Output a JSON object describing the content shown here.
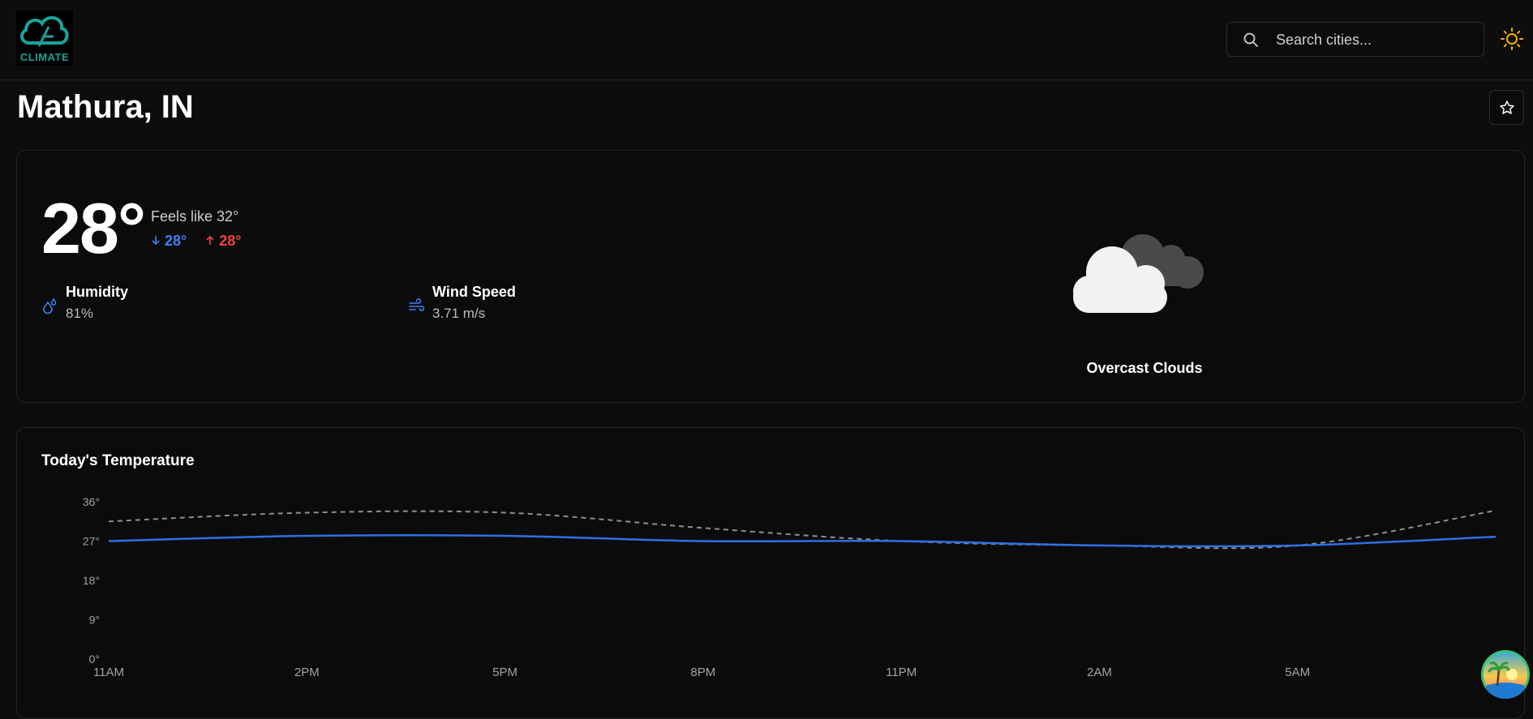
{
  "header": {
    "logo_text": "CLIMATE",
    "search_placeholder": "Search cities...",
    "accent": "#f5b301"
  },
  "location": {
    "title": "Mathura, IN"
  },
  "current": {
    "temperature": "28°",
    "feels_like": "Feels like 32°",
    "temp_min": "28°",
    "temp_max": "28°",
    "humidity_label": "Humidity",
    "humidity_value": "81%",
    "wind_label": "Wind Speed",
    "wind_value": "3.71 m/s",
    "condition": "Overcast Clouds",
    "condition_icon": "overcast-clouds-icon"
  },
  "chart_data": {
    "type": "line",
    "title": "Today's Temperature",
    "categories": [
      "11AM",
      "2PM",
      "5PM",
      "8PM",
      "11PM",
      "2AM",
      "5AM",
      "8AM"
    ],
    "y_ticks": [
      "0°",
      "9°",
      "18°",
      "27°",
      "36°"
    ],
    "ylim": [
      0,
      36
    ],
    "grid": false,
    "series": [
      {
        "values": [
          27,
          28.2,
          28.2,
          27,
          27,
          26,
          26,
          28
        ],
        "color": "#2f6fe4",
        "style": "solid"
      },
      {
        "values": [
          31.5,
          33.5,
          33.5,
          30,
          27,
          26,
          26,
          34
        ],
        "color": "#8a8f99",
        "style": "dashed"
      }
    ]
  }
}
